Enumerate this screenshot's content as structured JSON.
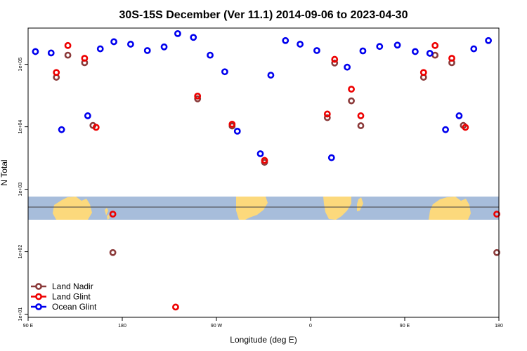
{
  "chart_data": {
    "type": "scatter",
    "title": "30S-15S December (Ver 11.1)   2014-09-06 to 2023-04-30",
    "xlabel": "Longitude (deg E)",
    "ylabel": "N Total",
    "y_scale": "log",
    "xlim": [
      90,
      540
    ],
    "ylim_log10": [
      0.95,
      5.58
    ],
    "x_ticks": [
      {
        "value": 90,
        "label": "90 E"
      },
      {
        "value": 180,
        "label": "180"
      },
      {
        "value": 270,
        "label": "90 W"
      },
      {
        "value": 360,
        "label": "0"
      },
      {
        "value": 450,
        "label": "90 E"
      },
      {
        "value": 540,
        "label": "180"
      }
    ],
    "y_ticks": [
      {
        "value": 10,
        "label": "1e+01"
      },
      {
        "value": 100,
        "label": "1e+02"
      },
      {
        "value": 1000,
        "label": "1e+03"
      },
      {
        "value": 10000,
        "label": "1e+04"
      },
      {
        "value": 100000,
        "label": "1e+05"
      }
    ],
    "grid": false,
    "legend_position": "bottom-left",
    "map_inset": {
      "description": "world map strip spanning longitude, land in yellow, ocean in blue",
      "ocean_color": "#a7bddb",
      "land_color": "#fcd97c"
    },
    "series": [
      {
        "name": "Land Nadir",
        "color": "#8b3a3a",
        "points": [
          {
            "x": 117,
            "y": 62000
          },
          {
            "x": 128,
            "y": 140000
          },
          {
            "x": 144,
            "y": 106000
          },
          {
            "x": 152,
            "y": 10500
          },
          {
            "x": 171,
            "y": 97
          },
          {
            "x": 252,
            "y": 28000
          },
          {
            "x": 285,
            "y": 10300
          },
          {
            "x": 316,
            "y": 2700
          },
          {
            "x": 376,
            "y": 14000
          },
          {
            "x": 383,
            "y": 105000
          },
          {
            "x": 399,
            "y": 26000
          },
          {
            "x": 408,
            "y": 10400
          },
          {
            "x": 468,
            "y": 62000
          },
          {
            "x": 479,
            "y": 140000
          },
          {
            "x": 495,
            "y": 106000
          },
          {
            "x": 506,
            "y": 10500
          },
          {
            "x": 538,
            "y": 97
          }
        ]
      },
      {
        "name": "Land Glint",
        "color": "#ee0000",
        "points": [
          {
            "x": 117,
            "y": 74000
          },
          {
            "x": 128,
            "y": 200000
          },
          {
            "x": 144,
            "y": 125000
          },
          {
            "x": 155,
            "y": 9800
          },
          {
            "x": 171,
            "y": 400
          },
          {
            "x": 231,
            "y": 13
          },
          {
            "x": 252,
            "y": 31000
          },
          {
            "x": 285,
            "y": 11000
          },
          {
            "x": 316,
            "y": 2900
          },
          {
            "x": 376,
            "y": 16000
          },
          {
            "x": 383,
            "y": 120000
          },
          {
            "x": 399,
            "y": 40000
          },
          {
            "x": 408,
            "y": 15000
          },
          {
            "x": 468,
            "y": 74000
          },
          {
            "x": 479,
            "y": 200000
          },
          {
            "x": 495,
            "y": 125000
          },
          {
            "x": 508,
            "y": 9800
          },
          {
            "x": 538,
            "y": 400
          }
        ]
      },
      {
        "name": "Ocean Glint",
        "color": "#0000ee",
        "points": [
          {
            "x": 97,
            "y": 160000
          },
          {
            "x": 112,
            "y": 152000
          },
          {
            "x": 122,
            "y": 9000
          },
          {
            "x": 147,
            "y": 15000
          },
          {
            "x": 159,
            "y": 177000
          },
          {
            "x": 172,
            "y": 230000
          },
          {
            "x": 188,
            "y": 210000
          },
          {
            "x": 204,
            "y": 166000
          },
          {
            "x": 220,
            "y": 190000
          },
          {
            "x": 233,
            "y": 310000
          },
          {
            "x": 248,
            "y": 270000
          },
          {
            "x": 264,
            "y": 140000
          },
          {
            "x": 278,
            "y": 76000
          },
          {
            "x": 290,
            "y": 8500
          },
          {
            "x": 312,
            "y": 3700
          },
          {
            "x": 322,
            "y": 67000
          },
          {
            "x": 336,
            "y": 240000
          },
          {
            "x": 350,
            "y": 210000
          },
          {
            "x": 366,
            "y": 166000
          },
          {
            "x": 380,
            "y": 3200
          },
          {
            "x": 395,
            "y": 90000
          },
          {
            "x": 410,
            "y": 164000
          },
          {
            "x": 426,
            "y": 193000
          },
          {
            "x": 443,
            "y": 203000
          },
          {
            "x": 460,
            "y": 160000
          },
          {
            "x": 474,
            "y": 150000
          },
          {
            "x": 489,
            "y": 9000
          },
          {
            "x": 502,
            "y": 15000
          },
          {
            "x": 516,
            "y": 177000
          },
          {
            "x": 530,
            "y": 240000
          }
        ]
      }
    ]
  }
}
